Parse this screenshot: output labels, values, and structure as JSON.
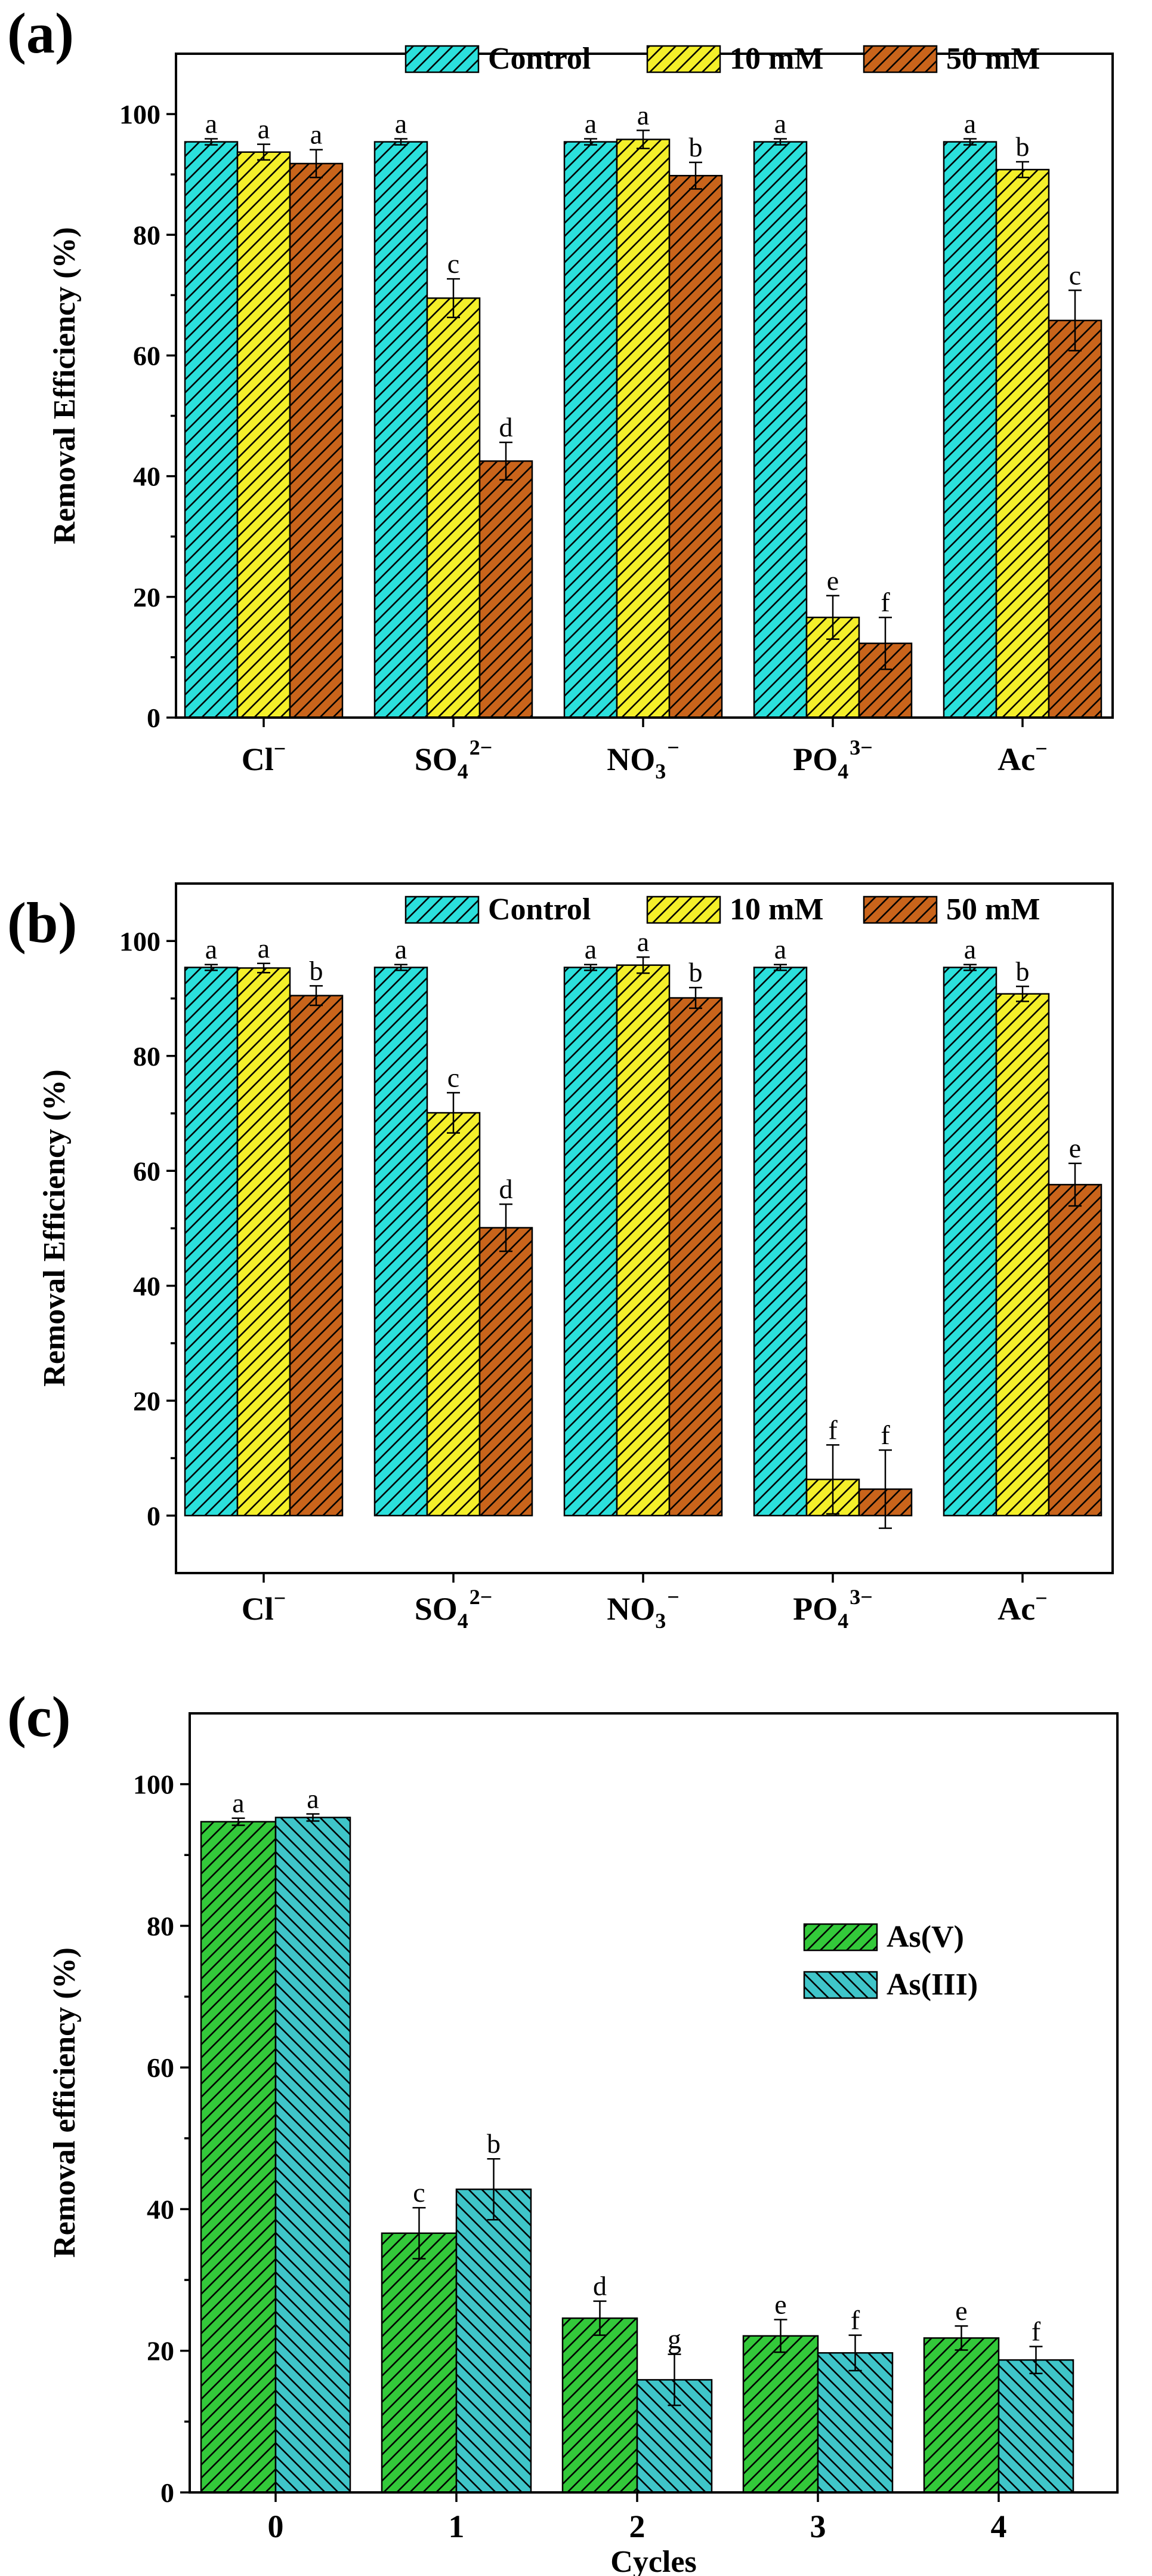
{
  "colors": {
    "control": "#2be0dc",
    "mM10": "#f4ef2a",
    "mM50": "#c9641b",
    "asV": "#33c93a",
    "asIII": "#3fc5c9",
    "hatch": "#000000"
  },
  "chart_data": [
    {
      "panel": "(a)",
      "type": "bar",
      "ylabel": "Removal Efficiency (%)",
      "xlabel": "",
      "ylim": [
        0,
        110
      ],
      "yticks": [
        0,
        20,
        40,
        60,
        80,
        100
      ],
      "legend_position": "top",
      "categories": [
        {
          "base": "Cl",
          "sub": "",
          "sup": "−"
        },
        {
          "base": "SO",
          "sub": "4",
          "sup": "2−"
        },
        {
          "base": "NO",
          "sub": "3",
          "sup": "−"
        },
        {
          "base": "PO",
          "sub": "4",
          "sup": "3−"
        },
        {
          "base": "Ac",
          "sub": "",
          "sup": "−"
        }
      ],
      "series": [
        {
          "name": "Control",
          "color_key": "control",
          "hatch": "up",
          "values": [
            95.4,
            95.4,
            95.4,
            95.4,
            95.4
          ],
          "errors": [
            0.5,
            0.5,
            0.5,
            0.5,
            0.5
          ],
          "letters": [
            "a",
            "a",
            "a",
            "a",
            "a"
          ]
        },
        {
          "name": "10 mM",
          "color_key": "mM10",
          "hatch": "up",
          "values": [
            93.7,
            69.5,
            95.8,
            16.6,
            90.8
          ],
          "errors": [
            1.3,
            3.2,
            1.5,
            3.6,
            1.3
          ],
          "letters": [
            "a",
            "c",
            "a",
            "e",
            "b"
          ]
        },
        {
          "name": "50 mM",
          "color_key": "mM50",
          "hatch": "up",
          "values": [
            91.8,
            42.5,
            89.8,
            12.3,
            65.8
          ],
          "errors": [
            2.3,
            3.1,
            2.2,
            4.3,
            5.0
          ],
          "letters": [
            "a",
            "d",
            "b",
            "f",
            "c"
          ]
        }
      ]
    },
    {
      "panel": "(b)",
      "type": "bar",
      "ylabel": "Removal Efficiency (%)",
      "xlabel": "",
      "ylim": [
        -10,
        110
      ],
      "yticks": [
        0,
        20,
        40,
        60,
        80,
        100
      ],
      "legend_position": "top",
      "categories": [
        {
          "base": "Cl",
          "sub": "",
          "sup": "−"
        },
        {
          "base": "SO",
          "sub": "4",
          "sup": "2−"
        },
        {
          "base": "NO",
          "sub": "3",
          "sup": "−"
        },
        {
          "base": "PO",
          "sub": "4",
          "sup": "3−"
        },
        {
          "base": "Ac",
          "sub": "",
          "sup": "−"
        }
      ],
      "series": [
        {
          "name": "Control",
          "color_key": "control",
          "hatch": "up",
          "values": [
            95.4,
            95.4,
            95.4,
            95.4,
            95.4
          ],
          "errors": [
            0.5,
            0.5,
            0.5,
            0.5,
            0.5
          ],
          "letters": [
            "a",
            "a",
            "a",
            "a",
            "a"
          ]
        },
        {
          "name": "10 mM",
          "color_key": "mM10",
          "hatch": "up",
          "values": [
            95.3,
            70.1,
            95.8,
            6.3,
            90.8
          ],
          "errors": [
            0.8,
            3.5,
            1.4,
            6.0,
            1.3
          ],
          "letters": [
            "a",
            "c",
            "a",
            "f",
            "b"
          ]
        },
        {
          "name": "50 mM",
          "color_key": "mM50",
          "hatch": "up",
          "values": [
            90.5,
            50.1,
            90.1,
            4.6,
            57.6
          ],
          "errors": [
            1.7,
            4.1,
            1.8,
            6.8,
            3.7
          ],
          "letters": [
            "b",
            "d",
            "b",
            "f",
            "e"
          ]
        }
      ]
    },
    {
      "panel": "(c)",
      "type": "bar",
      "ylabel": "Removal efficiency (%)",
      "xlabel": "Cycles",
      "ylim": [
        0,
        110
      ],
      "yticks": [
        0,
        20,
        40,
        60,
        80,
        100
      ],
      "legend_position": "center-right",
      "categories": [
        {
          "base": "0",
          "sub": "",
          "sup": ""
        },
        {
          "base": "1",
          "sub": "",
          "sup": ""
        },
        {
          "base": "2",
          "sub": "",
          "sup": ""
        },
        {
          "base": "3",
          "sub": "",
          "sup": ""
        },
        {
          "base": "4",
          "sub": "",
          "sup": ""
        }
      ],
      "series": [
        {
          "name": "As(V)",
          "color_key": "asV",
          "hatch": "up",
          "values": [
            94.7,
            36.6,
            24.6,
            22.1,
            21.8
          ],
          "errors": [
            0.5,
            3.6,
            2.4,
            2.3,
            1.7
          ],
          "letters": [
            "a",
            "c",
            "d",
            "e",
            "e"
          ]
        },
        {
          "name": "As(III)",
          "color_key": "asIII",
          "hatch": "down",
          "values": [
            95.3,
            42.8,
            15.9,
            19.7,
            18.7
          ],
          "errors": [
            0.5,
            4.3,
            3.6,
            2.5,
            1.9
          ],
          "letters": [
            "a",
            "b",
            "g",
            "f",
            "f"
          ]
        }
      ]
    }
  ]
}
